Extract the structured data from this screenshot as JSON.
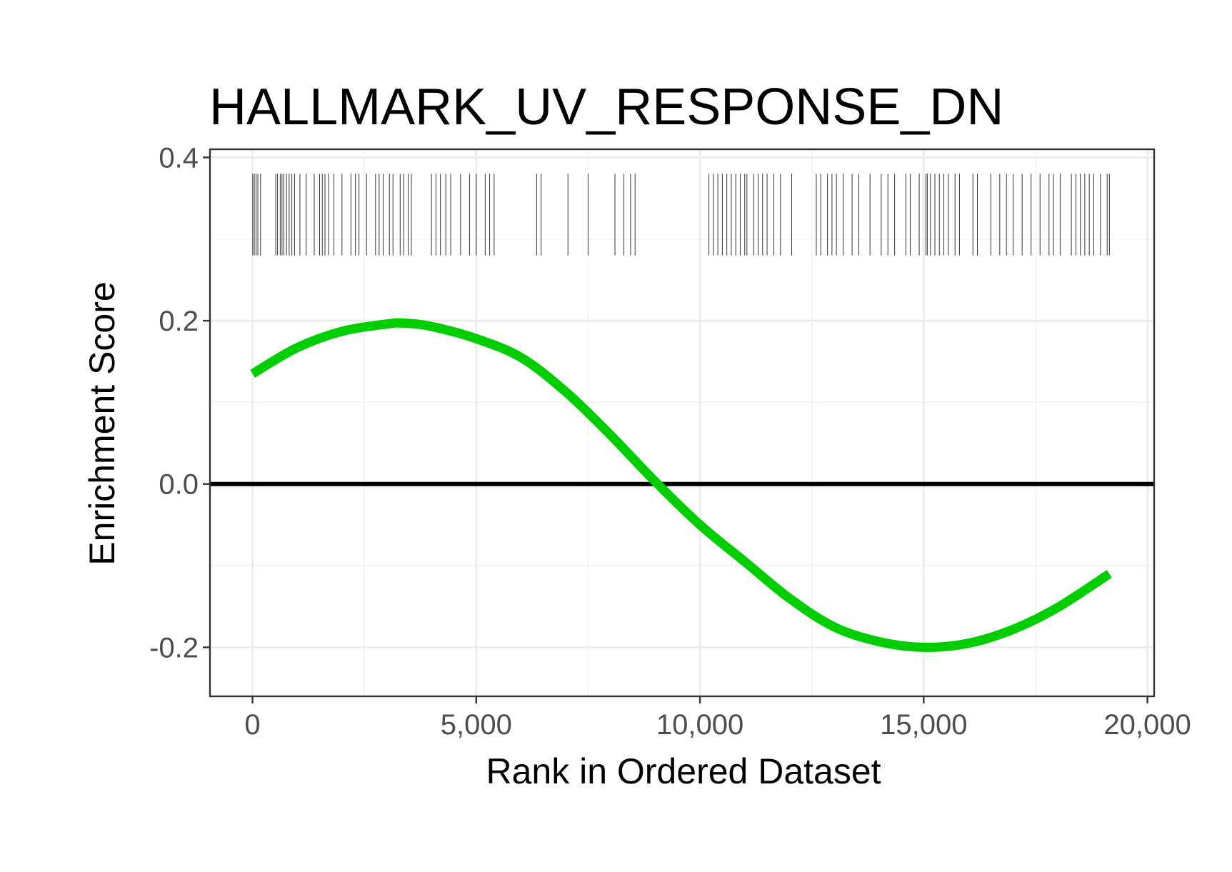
{
  "chart_data": {
    "type": "line",
    "title": "HALLMARK_UV_RESPONSE_DN",
    "xlabel": "Rank in Ordered Dataset",
    "ylabel": "Enrichment Score",
    "xlim": [
      -950,
      20150
    ],
    "ylim": [
      -0.26,
      0.41
    ],
    "x_ticks": [
      {
        "value": 0,
        "label": "0"
      },
      {
        "value": 5000,
        "label": "5,000"
      },
      {
        "value": 10000,
        "label": "10,000"
      },
      {
        "value": 15000,
        "label": "15,000"
      },
      {
        "value": 20000,
        "label": "20,000"
      }
    ],
    "y_ticks": [
      {
        "value": -0.2,
        "label": "-0.2"
      },
      {
        "value": 0.0,
        "label": "0.0"
      },
      {
        "value": 0.2,
        "label": "0.2"
      },
      {
        "value": 0.4,
        "label": "0.4"
      }
    ],
    "grid": true,
    "legend": "none",
    "series": [
      {
        "color": "#00CD00",
        "x": [
          0,
          1000,
          2000,
          3000,
          3400,
          4000,
          5000,
          6000,
          7000,
          8000,
          9000,
          10000,
          11000,
          12000,
          13000,
          14000,
          15000,
          16000,
          17000,
          18000,
          19150
        ],
        "y": [
          0.135,
          0.167,
          0.187,
          0.196,
          0.197,
          0.193,
          0.178,
          0.155,
          0.113,
          0.06,
          0.003,
          -0.05,
          -0.095,
          -0.14,
          -0.175,
          -0.193,
          -0.2,
          -0.195,
          -0.178,
          -0.151,
          -0.11
        ]
      }
    ],
    "reference_lines": [
      {
        "axis": "y",
        "value": 0.0,
        "color": "#000000"
      }
    ],
    "gene_hits": {
      "color": "#333333",
      "y_range": [
        0.28,
        0.38
      ],
      "positions": [
        5,
        40,
        80,
        120,
        180,
        520,
        560,
        620,
        660,
        700,
        760,
        820,
        880,
        940,
        1060,
        1200,
        1380,
        1500,
        1560,
        1620,
        1700,
        1820,
        2000,
        2200,
        2300,
        2380,
        2550,
        2750,
        2830,
        2920,
        3060,
        3140,
        3300,
        3380,
        3480,
        3550,
        4000,
        4100,
        4200,
        4320,
        4430,
        4650,
        4850,
        5000,
        5200,
        5300,
        5400,
        6350,
        6450,
        7050,
        7500,
        8100,
        8300,
        8450,
        8550,
        10200,
        10300,
        10400,
        10500,
        10600,
        10700,
        10800,
        10900,
        11000,
        11050,
        11200,
        11300,
        11400,
        11500,
        11650,
        11800,
        12050,
        12600,
        12700,
        12850,
        12950,
        13050,
        13200,
        13400,
        13550,
        13800,
        14050,
        14200,
        14350,
        14600,
        14700,
        14900,
        15050,
        15080,
        15150,
        15250,
        15350,
        15450,
        15550,
        15700,
        15800,
        16100,
        16200,
        16500,
        16700,
        16850,
        17000,
        17200,
        17400,
        17600,
        17800,
        17900,
        18050,
        18300,
        18400,
        18500,
        18600,
        18700,
        18800,
        18950,
        19100,
        19150
      ]
    }
  }
}
